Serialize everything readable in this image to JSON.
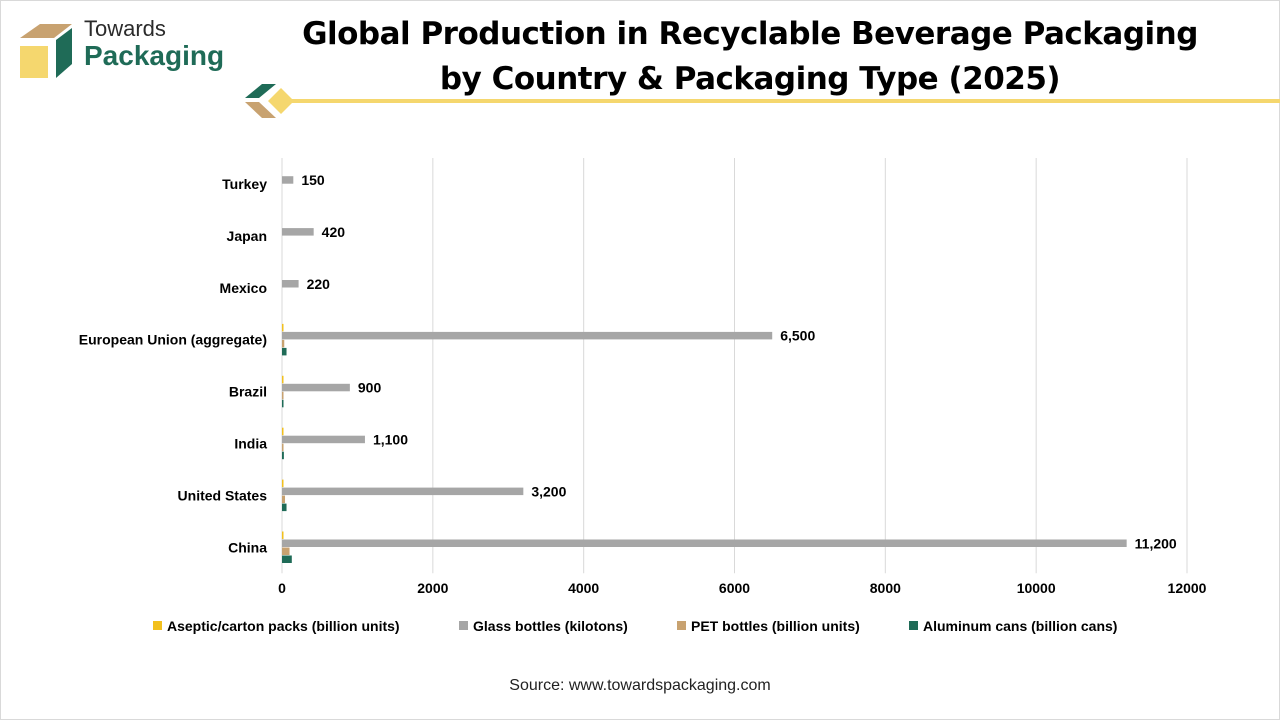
{
  "brand": {
    "line1": "Towards",
    "line2": "Packaging"
  },
  "title": "Global Production in Recyclable Beverage Packaging by Country & Packaging Type (2025)",
  "source": "Source: www.towardspackaging.com",
  "colors": {
    "accent_yellow": "#f5d76e",
    "brand_green": "#1f6b57",
    "brand_tan": "#c8a270"
  },
  "chart_data": {
    "type": "bar",
    "orientation": "horizontal",
    "categories": [
      "Turkey",
      "Japan",
      "Mexico",
      "European Union (aggregate)",
      "Brazil",
      "India",
      "United States",
      "China"
    ],
    "series": [
      {
        "name": "Aseptic/carton packs (billion units)",
        "color": "#f2c01d",
        "values": [
          0,
          0,
          0,
          5,
          2,
          3,
          5,
          12
        ]
      },
      {
        "name": "Glass bottles (kilotons)",
        "color": "#a6a6a6",
        "values": [
          150,
          420,
          220,
          6500,
          900,
          1100,
          3200,
          11200
        ],
        "labels": [
          "150",
          "420",
          "220",
          "6,500",
          "900",
          "1,100",
          "3,200",
          "11,200"
        ]
      },
      {
        "name": "PET bottles (billion units)",
        "color": "#c8a270",
        "values": [
          0,
          0,
          0,
          30,
          10,
          20,
          40,
          100
        ]
      },
      {
        "name": "Aluminum cans (billion cans)",
        "color": "#1f6b57",
        "values": [
          0,
          0,
          0,
          60,
          15,
          25,
          60,
          130
        ]
      }
    ],
    "xlim": [
      0,
      12000
    ],
    "xticks": [
      0,
      2000,
      4000,
      6000,
      8000,
      10000,
      12000
    ],
    "grid": true,
    "legend_position": "bottom"
  }
}
